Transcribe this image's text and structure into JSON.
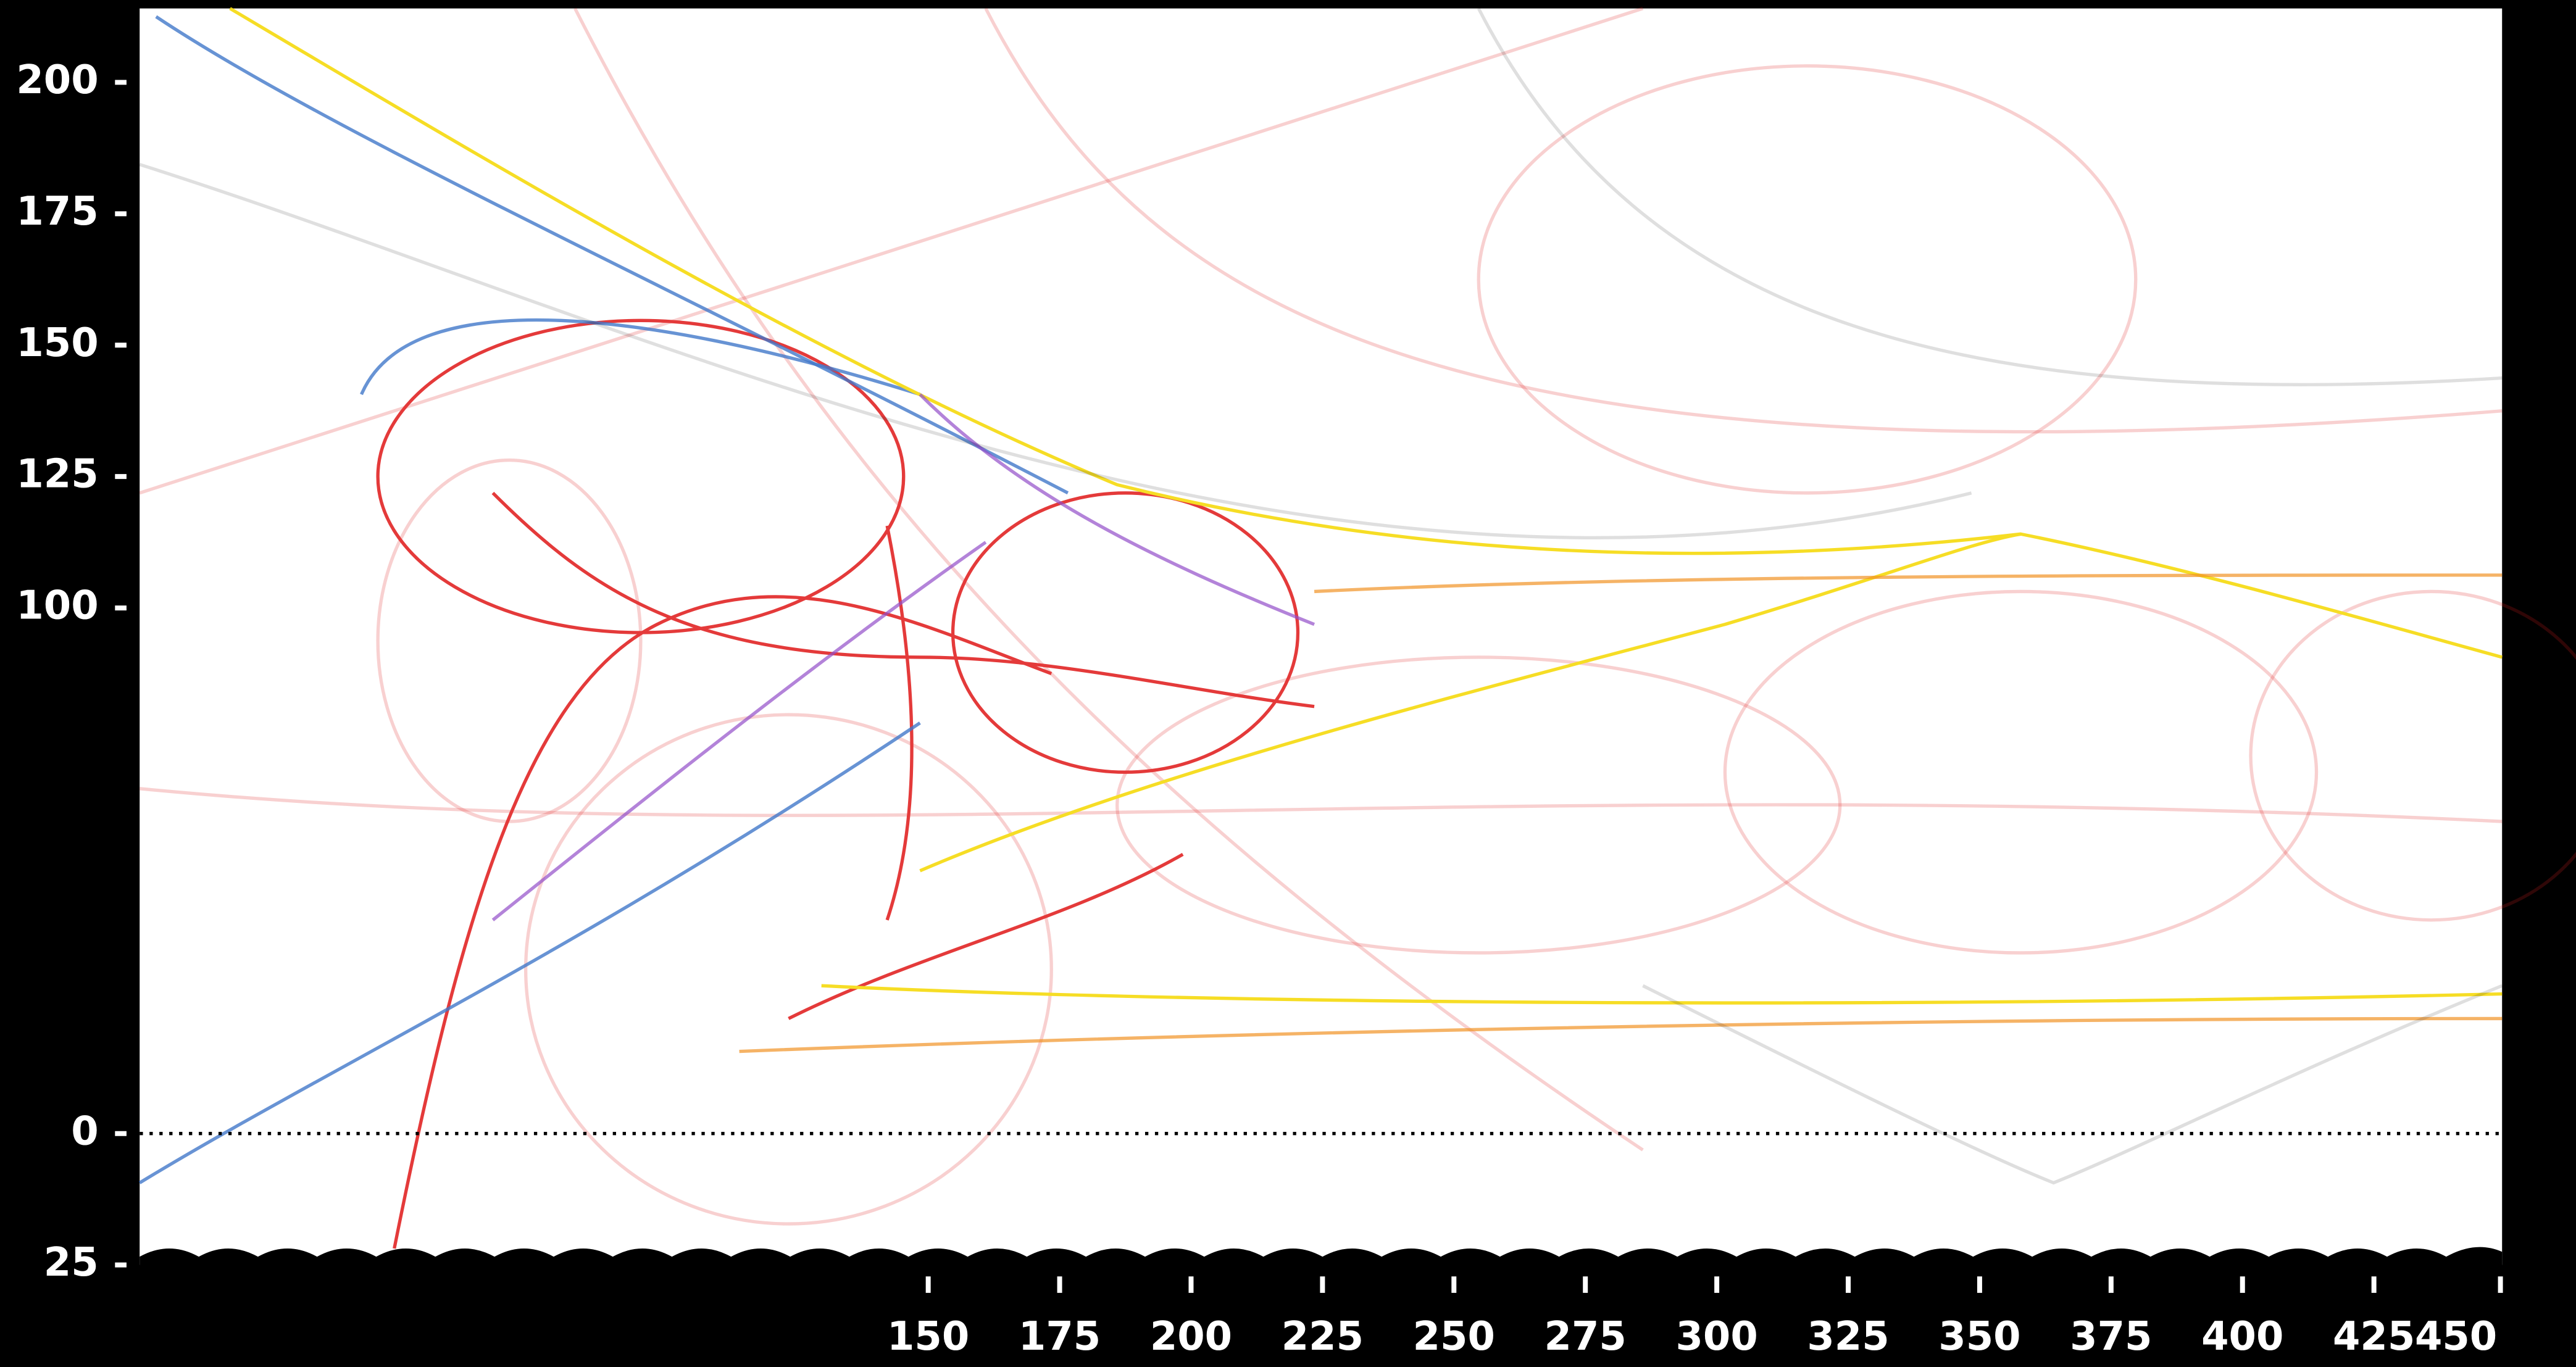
{
  "chart_data": {
    "type": "artwork",
    "xlim": [
      0,
      450
    ],
    "xticks": [
      150,
      175,
      200,
      225,
      250,
      275,
      300,
      325,
      350,
      375,
      400,
      425,
      450
    ],
    "ylim": [
      -25,
      214
    ],
    "yticks": [
      200,
      175,
      150,
      125,
      100,
      0,
      {
        "value": -25,
        "label": "25"
      }
    ]
  }
}
